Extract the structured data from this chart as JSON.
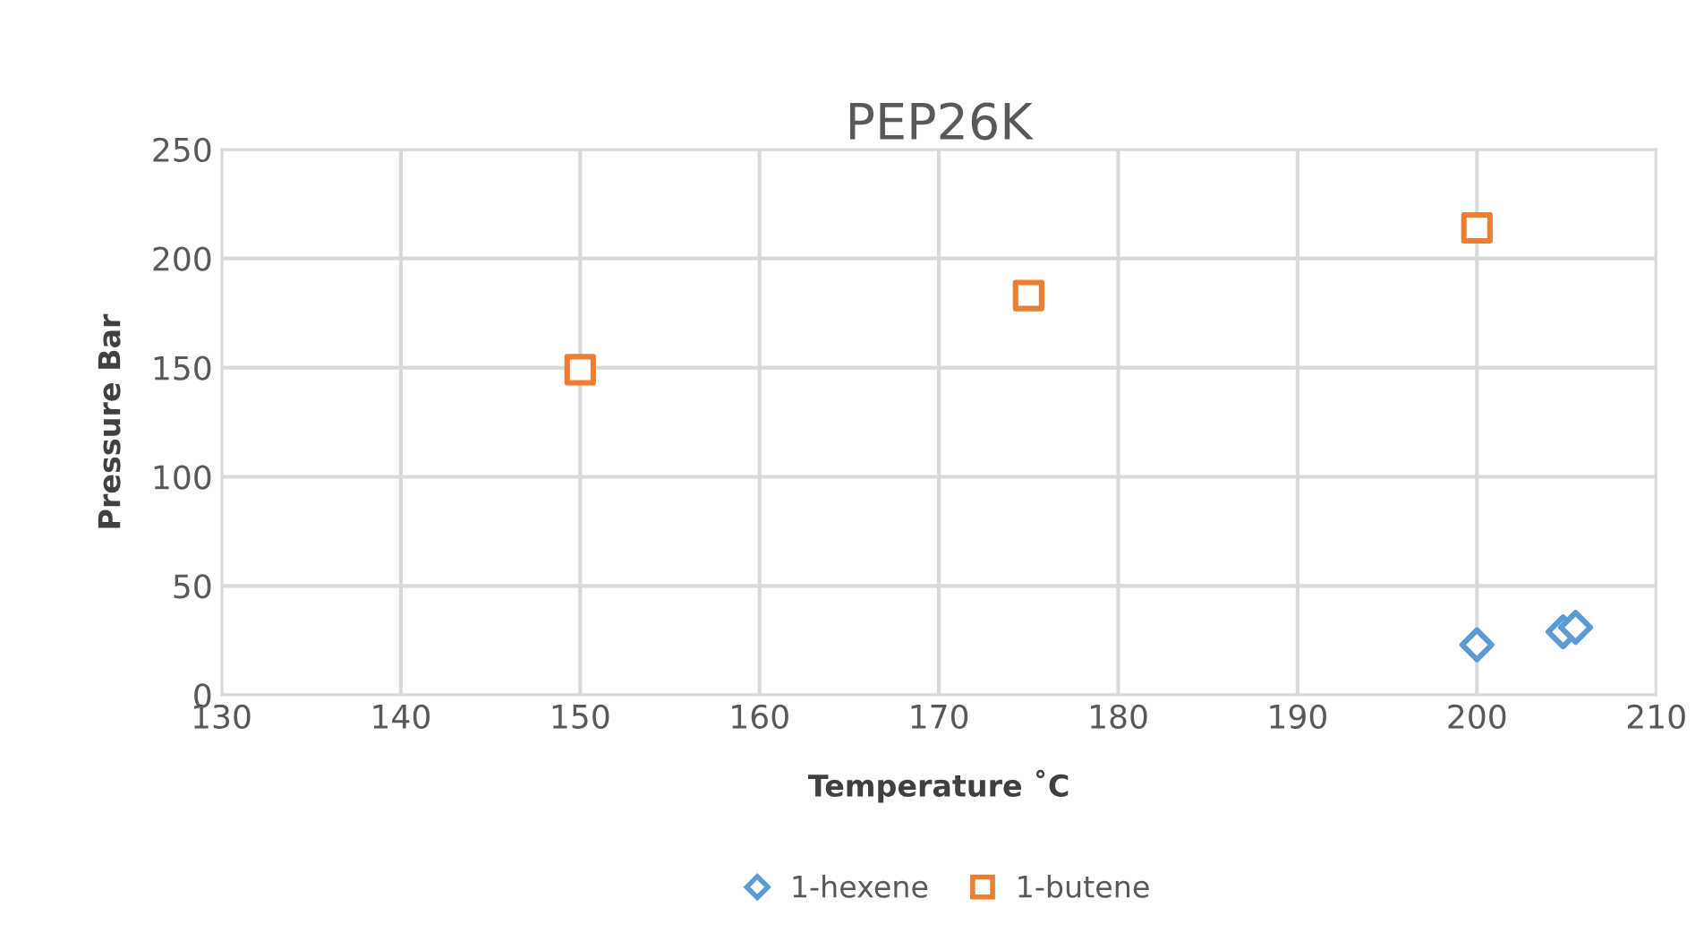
{
  "chart_data": {
    "type": "scatter",
    "title": "PEP26K",
    "xlabel": "Temperature ˚C",
    "ylabel": "Pressure Bar",
    "series": [
      {
        "name": "1-hexene",
        "color": "#5b9bd5",
        "marker": "diamond",
        "x": [
          200,
          204.8,
          205.5
        ],
        "values": [
          23,
          29,
          31
        ]
      },
      {
        "name": "1-butene",
        "color": "#ed7d31",
        "marker": "square",
        "x": [
          150,
          175,
          200
        ],
        "values": [
          149,
          183,
          214
        ]
      }
    ],
    "xlim": [
      130,
      210
    ],
    "xticks": [
      130,
      140,
      150,
      160,
      170,
      180,
      190,
      200,
      210
    ],
    "ylim": [
      0,
      250
    ],
    "yticks": [
      0,
      50,
      100,
      150,
      200,
      250
    ],
    "grid": true,
    "legend": "bottom"
  }
}
